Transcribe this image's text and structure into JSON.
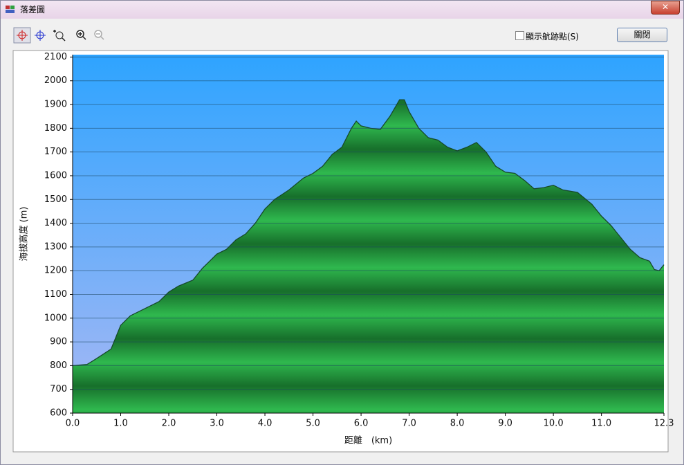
{
  "window": {
    "title": "落差圖"
  },
  "toolbar": {
    "checkbox_label": "顯示航跡點(S)",
    "button": "關閉"
  },
  "chart_data": {
    "type": "area",
    "x_label": "距離　(km)",
    "y_label": "海拔高度 (m)",
    "x": [
      0,
      0.3,
      0.5,
      0.8,
      0.9,
      1.0,
      1.2,
      1.5,
      1.8,
      2.0,
      2.2,
      2.5,
      2.7,
      3.0,
      3.2,
      3.4,
      3.6,
      3.8,
      4.0,
      4.2,
      4.5,
      4.8,
      5.0,
      5.2,
      5.4,
      5.6,
      5.8,
      5.9,
      6.0,
      6.2,
      6.4,
      6.6,
      6.8,
      6.9,
      7.0,
      7.2,
      7.4,
      7.6,
      7.8,
      8.0,
      8.2,
      8.4,
      8.6,
      8.8,
      9.0,
      9.2,
      9.4,
      9.6,
      9.8,
      10.0,
      10.2,
      10.5,
      10.8,
      11.0,
      11.2,
      11.4,
      11.6,
      11.8,
      12.0,
      12.1,
      12.2,
      12.3
    ],
    "values": [
      800,
      805,
      830,
      870,
      920,
      970,
      1010,
      1040,
      1070,
      1110,
      1135,
      1160,
      1210,
      1270,
      1290,
      1330,
      1355,
      1400,
      1460,
      1500,
      1540,
      1590,
      1610,
      1640,
      1690,
      1720,
      1800,
      1830,
      1810,
      1800,
      1795,
      1850,
      1920,
      1920,
      1870,
      1800,
      1760,
      1750,
      1720,
      1705,
      1720,
      1740,
      1700,
      1640,
      1615,
      1610,
      1580,
      1545,
      1550,
      1560,
      1540,
      1530,
      1480,
      1430,
      1390,
      1340,
      1290,
      1255,
      1240,
      1205,
      1200,
      1225
    ],
    "color": "#1f9c3c",
    "xlim": [
      0,
      12.3
    ],
    "xticks": [
      {
        "value": 0,
        "label": "0.0"
      },
      {
        "value": 1,
        "label": "1.0"
      },
      {
        "value": 2,
        "label": "2.0"
      },
      {
        "value": 3,
        "label": "3.0"
      },
      {
        "value": 4,
        "label": "4.0"
      },
      {
        "value": 5,
        "label": "5.0"
      },
      {
        "value": 6,
        "label": "6.0"
      },
      {
        "value": 7,
        "label": "7.0"
      },
      {
        "value": 8,
        "label": "8.0"
      },
      {
        "value": 9,
        "label": "9.0"
      },
      {
        "value": 10,
        "label": "10.0"
      },
      {
        "value": 11,
        "label": "11.0"
      },
      {
        "value": 12.3,
        "label": "12.3"
      }
    ],
    "ylim": [
      600,
      2110
    ],
    "yticks": [
      600,
      700,
      800,
      900,
      1000,
      1100,
      1200,
      1300,
      1400,
      1500,
      1600,
      1700,
      1800,
      1900,
      2000,
      2100
    ],
    "grid": true
  }
}
